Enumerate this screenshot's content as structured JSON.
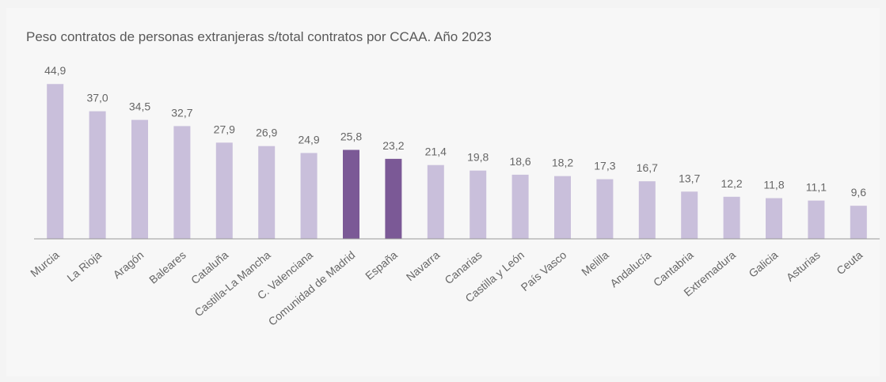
{
  "chart_data": {
    "type": "bar",
    "title": "Peso contratos de personas extranjeras s/total contratos por CCAA. Año 2023",
    "categories": [
      "Murcia",
      "La Rioja",
      "Aragón",
      "Baleares",
      "Cataluña",
      "Castilla-La Mancha",
      "C. Valenciana",
      "Comunidad de Madrid",
      "España",
      "Navarra",
      "Canarias",
      "Castilla y León",
      "País Vasco",
      "Melilla",
      "Andalucía",
      "Cantabria",
      "Extremadura",
      "Galicia",
      "Asturias",
      "Ceuta"
    ],
    "values": [
      44.9,
      37.0,
      34.5,
      32.7,
      27.9,
      26.9,
      24.9,
      25.8,
      23.2,
      21.4,
      19.8,
      18.6,
      18.2,
      17.3,
      16.7,
      13.7,
      12.2,
      11.8,
      11.1,
      9.6
    ],
    "value_labels": [
      "44,9",
      "37,0",
      "34,5",
      "32,7",
      "27,9",
      "26,9",
      "24,9",
      "25,8",
      "23,2",
      "21,4",
      "19,8",
      "18,6",
      "18,2",
      "17,3",
      "16,7",
      "13,7",
      "12,2",
      "11,8",
      "11,1",
      "9,6"
    ],
    "colors": [
      "#c9bfdb",
      "#c9bfdb",
      "#c9bfdb",
      "#c9bfdb",
      "#c9bfdb",
      "#c9bfdb",
      "#c9bfdb",
      "#7b5996",
      "#7b5996",
      "#c9bfdb",
      "#c9bfdb",
      "#c9bfdb",
      "#c9bfdb",
      "#c9bfdb",
      "#c9bfdb",
      "#c9bfdb",
      "#c9bfdb",
      "#c9bfdb",
      "#c9bfdb",
      "#c9bfdb"
    ],
    "ylim": [
      0,
      50
    ]
  }
}
